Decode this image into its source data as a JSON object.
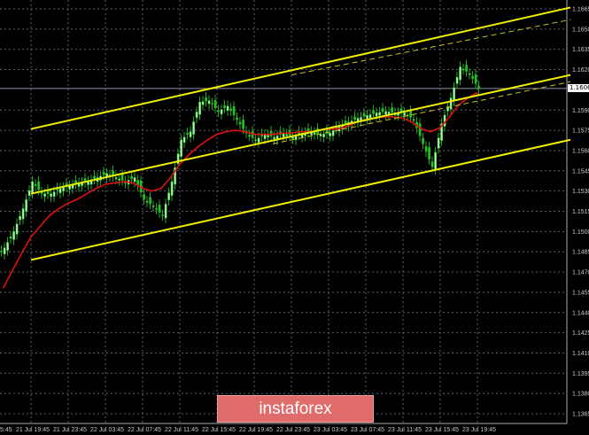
{
  "chart_data": {
    "type": "candlestick",
    "symbol_timeframe": "H1",
    "time_start": "21 Jul 16:45",
    "interval_hours": 1,
    "closes": [
      1.1488,
      1.15,
      1.1517,
      1.1537,
      1.1528,
      1.1528,
      1.1532,
      1.1534,
      1.1536,
      1.1537,
      1.154,
      1.1543,
      1.154,
      1.1537,
      1.154,
      1.1524,
      1.1519,
      1.1512,
      1.1537,
      1.1568,
      1.1574,
      1.1596,
      1.1597,
      1.1589,
      1.1593,
      1.1583,
      1.1573,
      1.1568,
      1.1572,
      1.157,
      1.1573,
      1.157,
      1.1573,
      1.1574,
      1.1572,
      1.1573,
      1.1578,
      1.1581,
      1.1584,
      1.1586,
      1.1588,
      1.1589,
      1.1588,
      1.1588,
      1.1583,
      1.1565,
      1.1548,
      1.158,
      1.1599,
      1.1622,
      1.1617,
      1.1606
    ],
    "moving_average": [
      1.1458,
      1.1471,
      1.1484,
      1.1496,
      1.1504,
      1.1512,
      1.1517,
      1.1521,
      1.1524,
      1.1528,
      1.1532,
      1.1535,
      1.1536,
      1.1537,
      1.1536,
      1.1532,
      1.153,
      1.1532,
      1.154,
      1.155,
      1.1557,
      1.1563,
      1.1568,
      1.1572,
      1.1574,
      1.1575,
      1.1574,
      1.1572,
      1.1572,
      1.1572,
      1.1573,
      1.1573,
      1.1574,
      1.1574,
      1.1575,
      1.1576,
      1.1576,
      1.1578,
      1.1581,
      1.1583,
      1.1584,
      1.1585,
      1.1585,
      1.1584,
      1.1581,
      1.1576,
      1.1574,
      1.1577,
      1.1585,
      1.1594,
      1.1599,
      1.1603
    ],
    "channel_lines": [
      {
        "style": "solid",
        "from": {
          "hour": 3,
          "price": 1.1576
        },
        "to": {
          "hour": 61,
          "price": 1.1666
        }
      },
      {
        "style": "solid",
        "from": {
          "hour": 3,
          "price": 1.1528
        },
        "to": {
          "hour": 61,
          "price": 1.1616
        }
      },
      {
        "style": "solid",
        "from": {
          "hour": 3,
          "price": 1.1479
        },
        "to": {
          "hour": 61,
          "price": 1.1568
        }
      },
      {
        "style": "dashed",
        "from": {
          "hour": 31,
          "price": 1.1616
        },
        "to": {
          "hour": 61,
          "price": 1.1657
        }
      },
      {
        "style": "dashed",
        "from": {
          "hour": 29,
          "price": 1.1565
        },
        "to": {
          "hour": 61,
          "price": 1.1611
        }
      }
    ],
    "current_price": "1.1606",
    "ylim": [
      1.1365,
      1.1665
    ],
    "y_ticks": [
      "1.1665",
      "1.1650",
      "1.1635",
      "1.1620",
      "1.1590",
      "1.1575",
      "1.1560",
      "1.1545",
      "1.1530",
      "1.1515",
      "1.1500",
      "1.1485",
      "1.1470",
      "1.1455",
      "1.1440",
      "1.1425",
      "1.1410",
      "1.1395",
      "1.1380",
      "1.1365"
    ],
    "x_ticks": [
      "5:45",
      "21 Jul 19:45",
      "21 Jul 23:45",
      "22 Jul 03:45",
      "22 Jul 07:45",
      "22 Jul 11:45",
      "22 Jul 15:45",
      "22 Jul 19:45",
      "22 Jul 23:45",
      "23 Jul 03:45",
      "23 Jul 07:45",
      "23 Jul 11:45",
      "23 Jul 15:45",
      "23 Jul 19:45"
    ],
    "grid": true,
    "colors": {
      "background": "#000000",
      "candles": "#22c022",
      "ma": "#e01010",
      "channel": "#f0f000",
      "grid": "#5a6070",
      "axis_text": "#c8c8c8"
    }
  },
  "watermark": "instaforex"
}
